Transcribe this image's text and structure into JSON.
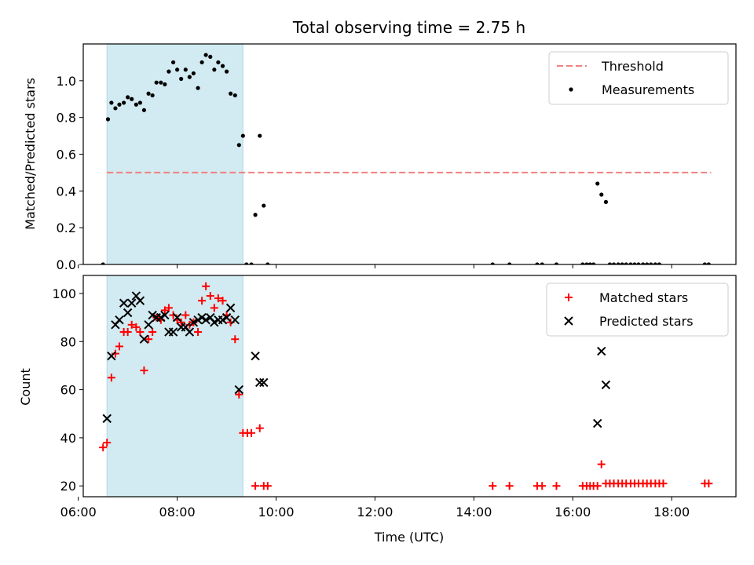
{
  "title": "Total observing time = 2.75 h",
  "colors": {
    "threshold": "#f08080",
    "measurement": "#000000",
    "matched": "#ff0000",
    "predicted": "#000000",
    "span": "#add8e6"
  },
  "chart_data": [
    {
      "type": "scatter",
      "panel": "top",
      "ylabel": "Matched/Predicted stars",
      "xlim": [
        6.1,
        19.3
      ],
      "ylim": [
        0,
        1.2
      ],
      "yticks": [
        0.0,
        0.2,
        0.4,
        0.6,
        0.8,
        1.0
      ],
      "ytick_labels": [
        "0.0",
        "0.2",
        "0.4",
        "0.6",
        "0.8",
        "1.0"
      ],
      "xticks": [
        6,
        8,
        10,
        12,
        14,
        16,
        18
      ],
      "highlight_span": [
        6.58,
        9.33
      ],
      "legend_position": "top-right",
      "threshold": {
        "name": "Threshold",
        "y": 0.5,
        "x": [
          6.58,
          18.8
        ]
      },
      "series": [
        {
          "name": "Measurements",
          "x": [
            6.5,
            6.6,
            6.67,
            6.75,
            6.83,
            6.92,
            7.0,
            7.08,
            7.17,
            7.25,
            7.33,
            7.42,
            7.5,
            7.58,
            7.67,
            7.75,
            7.83,
            7.92,
            8.0,
            8.08,
            8.17,
            8.25,
            8.33,
            8.42,
            8.5,
            8.58,
            8.67,
            8.75,
            8.83,
            8.92,
            9.0,
            9.08,
            9.17,
            9.25,
            9.33,
            9.4,
            9.5,
            9.58,
            9.67,
            9.75,
            9.83,
            14.38,
            14.72,
            15.28,
            15.38,
            15.67,
            16.2,
            16.28,
            16.35,
            16.42,
            16.5,
            16.58,
            16.67,
            16.75,
            16.83,
            16.92,
            17.0,
            17.08,
            17.17,
            17.25,
            17.33,
            17.42,
            17.5,
            17.58,
            17.67,
            17.75,
            18.67,
            18.75
          ],
          "y": [
            0.0,
            0.79,
            0.88,
            0.85,
            0.87,
            0.88,
            0.91,
            0.9,
            0.87,
            0.88,
            0.84,
            0.93,
            0.92,
            0.99,
            0.99,
            0.98,
            1.05,
            1.1,
            1.06,
            1.01,
            1.06,
            1.02,
            1.04,
            0.96,
            1.1,
            1.14,
            1.13,
            1.06,
            1.1,
            1.08,
            1.05,
            0.93,
            0.92,
            0.65,
            0.7,
            0.0,
            0.0,
            0.27,
            0.7,
            0.32,
            0.0,
            0.0,
            0.0,
            0.0,
            0.0,
            0.0,
            0.0,
            0.0,
            0.0,
            0.0,
            0.44,
            0.38,
            0.34,
            0.0,
            0.0,
            0.0,
            0.0,
            0.0,
            0.0,
            0.0,
            0.0,
            0.0,
            0.0,
            0.0,
            0.0,
            0.0,
            0.0,
            0.0
          ]
        }
      ]
    },
    {
      "type": "scatter",
      "panel": "bottom",
      "xlabel": "Time (UTC)",
      "ylabel": "Count",
      "xlim": [
        6.1,
        19.3
      ],
      "ylim": [
        15.5,
        107.5
      ],
      "yticks": [
        20,
        40,
        60,
        80,
        100
      ],
      "ytick_labels": [
        "20",
        "40",
        "60",
        "80",
        "100"
      ],
      "xticks": [
        6,
        8,
        10,
        12,
        14,
        16,
        18
      ],
      "xtick_labels": [
        "06:00",
        "08:00",
        "10:00",
        "12:00",
        "14:00",
        "16:00",
        "18:00"
      ],
      "highlight_span": [
        6.58,
        9.33
      ],
      "legend_position": "top-right",
      "series": [
        {
          "name": "Matched stars",
          "marker": "plus",
          "x": [
            6.5,
            6.58,
            6.67,
            6.75,
            6.83,
            6.92,
            7.0,
            7.08,
            7.17,
            7.25,
            7.33,
            7.42,
            7.5,
            7.58,
            7.67,
            7.75,
            7.83,
            7.92,
            8.0,
            8.08,
            8.17,
            8.25,
            8.33,
            8.42,
            8.5,
            8.58,
            8.67,
            8.75,
            8.83,
            8.92,
            9.0,
            9.08,
            9.17,
            9.25,
            9.33,
            9.42,
            9.5,
            9.58,
            9.67,
            9.75,
            9.83,
            14.38,
            14.72,
            15.28,
            15.38,
            15.67,
            16.2,
            16.28,
            16.35,
            16.42,
            16.5,
            16.58,
            16.67,
            16.75,
            16.83,
            16.92,
            17.0,
            17.08,
            17.17,
            17.25,
            17.33,
            17.42,
            17.5,
            17.58,
            17.67,
            17.75,
            17.83,
            18.67,
            18.75
          ],
          "y": [
            36,
            38,
            65,
            75,
            78,
            84,
            84,
            87,
            86,
            84,
            68,
            81,
            84,
            90,
            89,
            93,
            94,
            91,
            89,
            88,
            91,
            87,
            88,
            84,
            97,
            103,
            99,
            94,
            98,
            97,
            91,
            88,
            81,
            58,
            42,
            42,
            42,
            20,
            44,
            20,
            20,
            20,
            20,
            20,
            20,
            20,
            20,
            20,
            20,
            20,
            20,
            29,
            21,
            21,
            21,
            21,
            21,
            21,
            21,
            21,
            21,
            21,
            21,
            21,
            21,
            21,
            21,
            21,
            21
          ]
        },
        {
          "name": "Predicted stars",
          "marker": "x",
          "x": [
            6.58,
            6.67,
            6.75,
            6.83,
            6.92,
            7.0,
            7.08,
            7.17,
            7.25,
            7.33,
            7.42,
            7.5,
            7.58,
            7.67,
            7.75,
            7.83,
            7.92,
            8.0,
            8.08,
            8.17,
            8.25,
            8.33,
            8.42,
            8.5,
            8.58,
            8.67,
            8.75,
            8.83,
            8.92,
            9.0,
            9.08,
            9.17,
            9.25,
            9.58,
            9.67,
            9.75,
            16.5,
            16.58,
            16.67
          ],
          "y": [
            48,
            74,
            87,
            89,
            96,
            92,
            96,
            99,
            97,
            81,
            87,
            91,
            90,
            90,
            91,
            84,
            84,
            90,
            86,
            86,
            84,
            88,
            89,
            90,
            89,
            90,
            88,
            89,
            89,
            90,
            94,
            89,
            60,
            74,
            63,
            63,
            46,
            76,
            62
          ]
        }
      ]
    }
  ]
}
